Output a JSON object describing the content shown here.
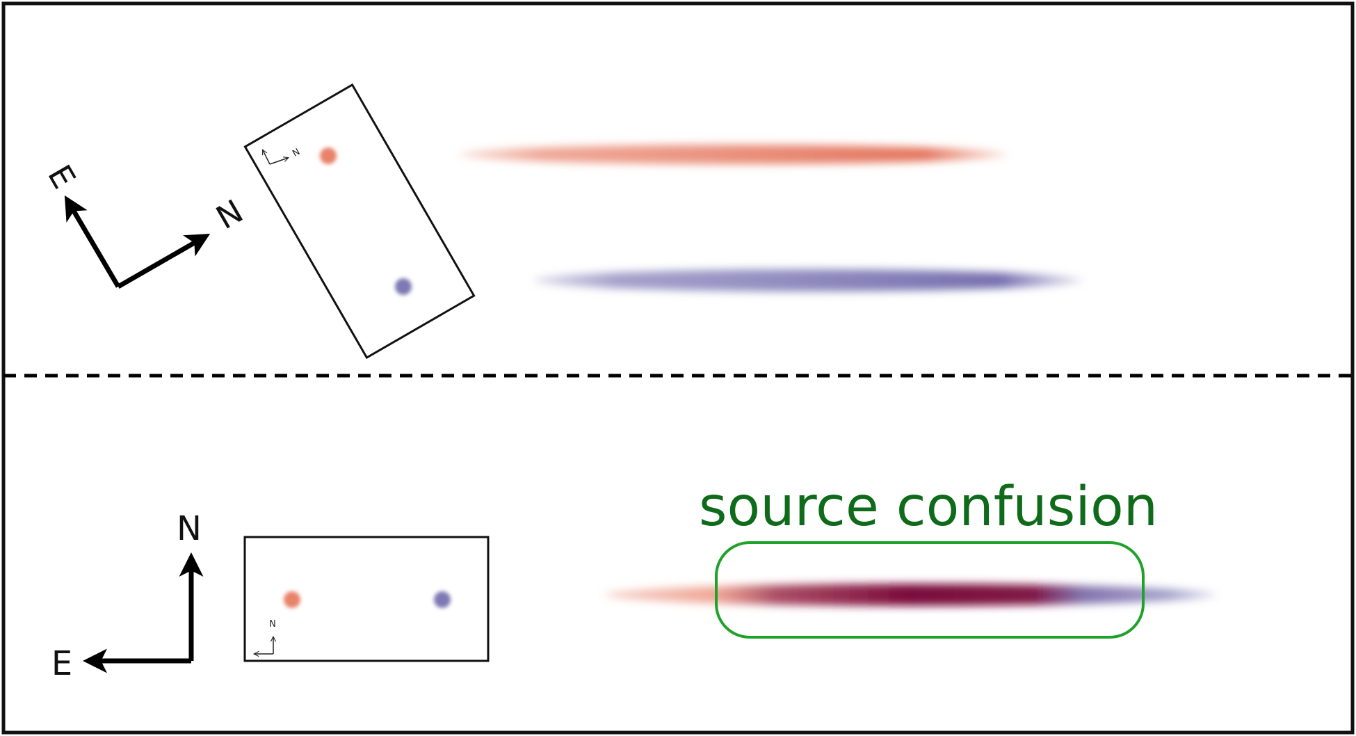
{
  "top_panel": {
    "compass": {
      "east": "E",
      "north": "N"
    },
    "slit_mini_compass": {
      "north": "N"
    }
  },
  "bottom_panel": {
    "compass": {
      "east": "E",
      "north": "N"
    },
    "slit_mini_compass": {
      "north": "N"
    },
    "callout": {
      "text": "source confusion",
      "color": "#0f6a1a",
      "outline_color": "#1fa22a"
    }
  },
  "colors": {
    "source_red": "#e8826a",
    "source_blue": "#7e79b4",
    "blend": "#7a0a3c",
    "frame": "#111111"
  }
}
